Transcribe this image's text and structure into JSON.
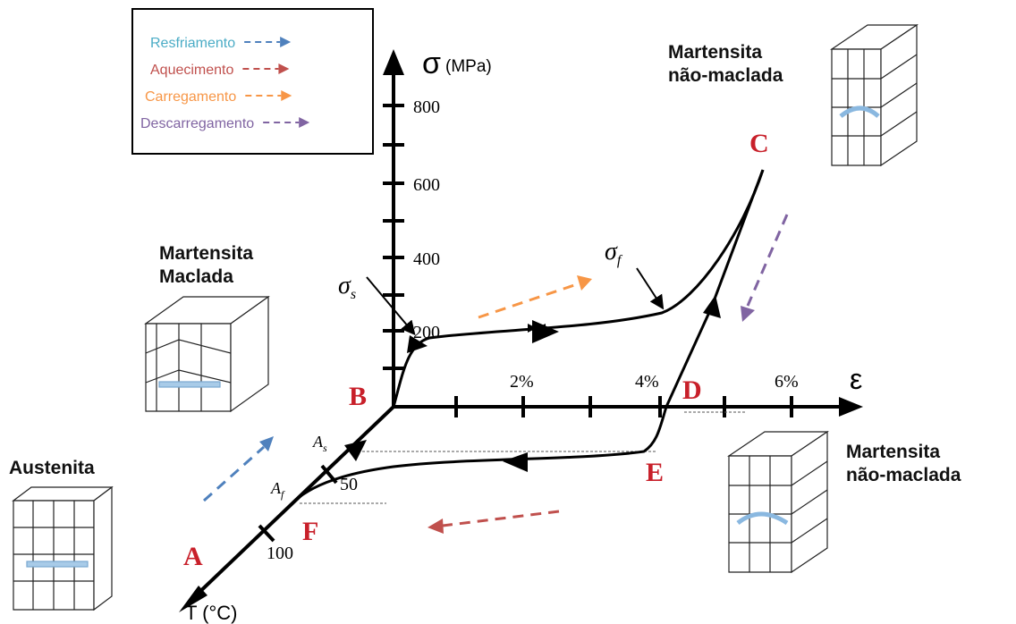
{
  "legend": {
    "items": [
      {
        "label": "Resfriamento",
        "color": "#4bacc6",
        "arrow_color": "#4f81bd"
      },
      {
        "label": "Aquecimento",
        "color": "#c0504d",
        "arrow_color": "#c0504d"
      },
      {
        "label": "Carregamento",
        "color": "#f79646",
        "arrow_color": "#f79646"
      },
      {
        "label": "Descarregamento",
        "color": "#8064a2",
        "arrow_color": "#8064a2"
      }
    ]
  },
  "axes": {
    "stress": {
      "symbol": "σ",
      "unit": "(MPa)",
      "ticks": [
        "800",
        "600",
        "400",
        "200"
      ]
    },
    "strain": {
      "symbol": "ε",
      "ticks": [
        "2%",
        "4%",
        "6%"
      ]
    },
    "temperature": {
      "label": "T (°C)",
      "ticks": [
        "50",
        "100"
      ]
    }
  },
  "points": [
    "A",
    "B",
    "C",
    "D",
    "E",
    "F"
  ],
  "annotations": {
    "sigma_s": {
      "symbol": "σ",
      "sub": "s"
    },
    "sigma_f": {
      "symbol": "σ",
      "sub": "f"
    },
    "a_s": {
      "symbol": "A",
      "sub": "s"
    },
    "a_f": {
      "symbol": "A",
      "sub": "f"
    }
  },
  "phases": {
    "twinned": "Martensita\nMaclada",
    "detwinned_top": "Martensita\nnão-maclada",
    "detwinned_bottom": "Martensita\nnão-maclada",
    "austenite": "Austenita"
  }
}
